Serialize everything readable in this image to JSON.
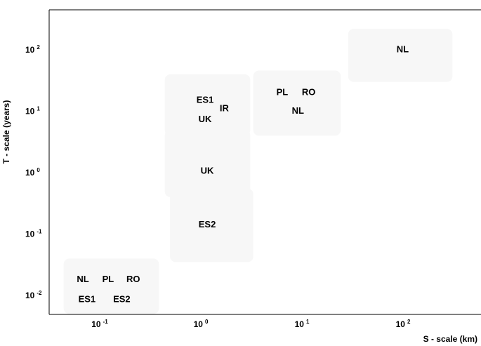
{
  "chart_data": {
    "type": "scatter",
    "xlabel": "S - scale (km)",
    "ylabel": "T - scale (years)",
    "xscale": "log",
    "yscale": "log",
    "grid": false,
    "x_ticks": [
      {
        "base": "10",
        "exp": "-1",
        "value": 0.1
      },
      {
        "base": "10",
        "exp": "0",
        "value": 1
      },
      {
        "base": "10",
        "exp": "1",
        "value": 10
      },
      {
        "base": "10",
        "exp": "2",
        "value": 100
      }
    ],
    "y_ticks": [
      {
        "base": "10",
        "exp": "-2",
        "value": 0.01
      },
      {
        "base": "10",
        "exp": "-1",
        "value": 0.1
      },
      {
        "base": "10",
        "exp": "0",
        "value": 1
      },
      {
        "base": "10",
        "exp": "1",
        "value": 10
      },
      {
        "base": "10",
        "exp": "2",
        "value": 100
      }
    ],
    "regions": [
      {
        "s_range": [
          0.04,
          0.35
        ],
        "t_range": [
          0.005,
          0.04
        ],
        "labels": [
          {
            "text": "NL",
            "s": 0.062,
            "t": 0.018
          },
          {
            "text": "PL",
            "s": 0.11,
            "t": 0.018
          },
          {
            "text": "RO",
            "s": 0.195,
            "t": 0.018
          },
          {
            "text": "ES1",
            "s": 0.068,
            "t": 0.0085
          },
          {
            "text": "ES2",
            "s": 0.15,
            "t": 0.0085
          }
        ]
      },
      {
        "s_range": [
          0.45,
          3.0
        ],
        "t_range": [
          0.035,
          0.55
        ],
        "labels": [
          {
            "text": "ES2",
            "s": 1.05,
            "t": 0.14
          }
        ]
      },
      {
        "s_range": [
          0.4,
          2.8
        ],
        "t_range": [
          0.4,
          5
        ],
        "labels": [
          {
            "text": "UK",
            "s": 1.05,
            "t": 1.05
          }
        ]
      },
      {
        "s_range": [
          0.4,
          2.8
        ],
        "t_range": [
          4,
          40
        ],
        "labels": [
          {
            "text": "ES1",
            "s": 1.0,
            "t": 15
          },
          {
            "text": "UK",
            "s": 1.0,
            "t": 7.3
          },
          {
            "text": "IR",
            "s": 1.55,
            "t": 11
          }
        ]
      },
      {
        "s_range": [
          3,
          22
        ],
        "t_range": [
          4,
          46
        ],
        "labels": [
          {
            "text": "PL",
            "s": 5.8,
            "t": 20
          },
          {
            "text": "RO",
            "s": 10.6,
            "t": 20
          },
          {
            "text": "NL",
            "s": 8.3,
            "t": 10
          }
        ]
      },
      {
        "s_range": [
          26,
          280
        ],
        "t_range": [
          30,
          220
        ],
        "labels": [
          {
            "text": "NL",
            "s": 90,
            "t": 100
          }
        ]
      }
    ]
  }
}
